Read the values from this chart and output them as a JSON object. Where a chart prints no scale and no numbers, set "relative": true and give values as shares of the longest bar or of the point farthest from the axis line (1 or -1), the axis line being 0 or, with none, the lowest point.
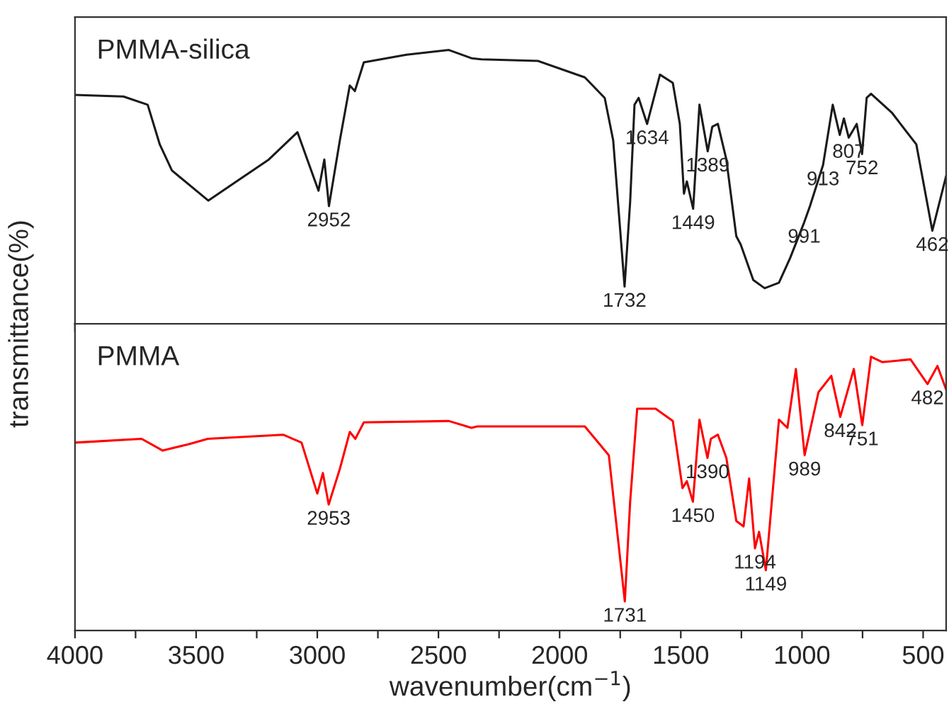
{
  "chart_data": [
    {
      "type": "line",
      "title": "PMMA-silica",
      "ylabel": "transmittance(%)",
      "relative": true,
      "color": "#1a1a1a",
      "tick_labels": false,
      "xlim": [
        4000,
        405
      ],
      "xticks": [
        4000,
        {
          "value": 3750,
          "label": null
        },
        3500,
        {
          "value": 3250,
          "label": null
        },
        3000,
        {
          "value": 2750,
          "label": null
        },
        2500,
        {
          "value": 2250,
          "label": null
        },
        2000,
        {
          "value": 1750,
          "label": null
        },
        1500,
        {
          "value": 1250,
          "label": null
        },
        1000,
        {
          "value": 750,
          "label": null
        },
        500
      ],
      "x": [
        4000,
        3800,
        3700,
        3650,
        3600,
        3450,
        3200,
        3082,
        2995,
        2971,
        2952,
        2907,
        2866,
        2845,
        2808,
        2632,
        2457,
        2364,
        2323,
        2089,
        1896,
        1814,
        1779,
        1732,
        1709,
        1691,
        1674,
        1639,
        1586,
        1533,
        1504,
        1487,
        1475,
        1449,
        1423,
        1389,
        1370,
        1347,
        1312,
        1271,
        1253,
        1201,
        1154,
        1095,
        1049,
        991,
        967,
        913,
        873,
        844,
        827,
        807,
        774,
        752,
        733,
        715,
        628,
        528,
        462,
        405
      ],
      "values": [
        0.836,
        0.83,
        0.8,
        0.655,
        0.56,
        0.45,
        0.6,
        0.7,
        0.486,
        0.6,
        0.43,
        0.67,
        0.87,
        0.85,
        0.955,
        0.983,
        1.0,
        0.97,
        0.966,
        0.96,
        0.9,
        0.825,
        0.67,
        0.136,
        0.446,
        0.8,
        0.825,
        0.73,
        0.91,
        0.88,
        0.73,
        0.475,
        0.52,
        0.42,
        0.8,
        0.63,
        0.72,
        0.73,
        0.6,
        0.32,
        0.29,
        0.16,
        0.13,
        0.15,
        0.24,
        0.37,
        0.43,
        0.58,
        0.8,
        0.69,
        0.75,
        0.68,
        0.73,
        0.62,
        0.825,
        0.84,
        0.77,
        0.655,
        0.34,
        0.54
      ],
      "annotations": [
        {
          "text": "2952",
          "x": 2952,
          "y": 0.43
        },
        {
          "text": "1732",
          "x": 1732,
          "y": 0.136
        },
        {
          "text": "1634",
          "x": 1639,
          "y": 0.73
        },
        {
          "text": "1449",
          "x": 1449,
          "y": 0.42
        },
        {
          "text": "1389",
          "x": 1389,
          "y": 0.63
        },
        {
          "text": "991",
          "x": 991,
          "y": 0.37
        },
        {
          "text": "913",
          "x": 913,
          "y": 0.58
        },
        {
          "text": "807",
          "x": 807,
          "y": 0.68
        },
        {
          "text": "752",
          "x": 752,
          "y": 0.62
        },
        {
          "text": "462",
          "x": 462,
          "y": 0.34
        }
      ]
    },
    {
      "type": "line",
      "title": "PMMA",
      "xlabel": "wavenumber(cm$^{−1}$)",
      "relative": true,
      "color": "#ff0000",
      "tick_labels": "x",
      "xlim": [
        4000,
        405
      ],
      "xticks": [
        4000,
        {
          "value": 3750,
          "label": null
        },
        3500,
        {
          "value": 3250,
          "label": null
        },
        3000,
        {
          "value": 2750,
          "label": null
        },
        2500,
        {
          "value": 2250,
          "label": null
        },
        2000,
        {
          "value": 1750,
          "label": null
        },
        1500,
        {
          "value": 1250,
          "label": null
        },
        1000,
        {
          "value": 750,
          "label": null
        },
        500
      ],
      "x": [
        4000,
        3725,
        3638,
        3532,
        3452,
        3141,
        3065,
        3000,
        2977,
        2953,
        2907,
        2866,
        2843,
        2808,
        2457,
        2364,
        2340,
        1896,
        1797,
        1731,
        1709,
        1680,
        1604,
        1533,
        1493,
        1475,
        1450,
        1423,
        1390,
        1376,
        1347,
        1312,
        1271,
        1241,
        1218,
        1194,
        1177,
        1149,
        1095,
        1060,
        1025,
        989,
        932,
        879,
        842,
        786,
        751,
        715,
        669,
        552,
        482,
        441,
        405
      ],
      "values": [
        0.686,
        0.7,
        0.657,
        0.68,
        0.7,
        0.715,
        0.686,
        0.5,
        0.575,
        0.46,
        0.59,
        0.725,
        0.7,
        0.76,
        0.765,
        0.74,
        0.745,
        0.745,
        0.64,
        0.106,
        0.47,
        0.81,
        0.81,
        0.765,
        0.52,
        0.545,
        0.47,
        0.77,
        0.63,
        0.7,
        0.715,
        0.63,
        0.4,
        0.38,
        0.555,
        0.3,
        0.36,
        0.22,
        0.77,
        0.74,
        0.955,
        0.64,
        0.87,
        0.93,
        0.78,
        0.955,
        0.75,
        1.0,
        0.98,
        0.99,
        0.9,
        0.966,
        0.88
      ],
      "annotations": [
        {
          "text": "2953",
          "x": 2953,
          "y": 0.46
        },
        {
          "text": "1731",
          "x": 1731,
          "y": 0.106
        },
        {
          "text": "1450",
          "x": 1450,
          "y": 0.47
        },
        {
          "text": "1390",
          "x": 1390,
          "y": 0.63
        },
        {
          "text": "1194",
          "x": 1194,
          "y": 0.3
        },
        {
          "text": "1149",
          "x": 1149,
          "y": 0.22
        },
        {
          "text": "989",
          "x": 989,
          "y": 0.64
        },
        {
          "text": "842",
          "x": 842,
          "y": 0.78
        },
        {
          "text": "751",
          "x": 751,
          "y": 0.75
        },
        {
          "text": "482",
          "x": 482,
          "y": 0.9
        }
      ]
    }
  ]
}
